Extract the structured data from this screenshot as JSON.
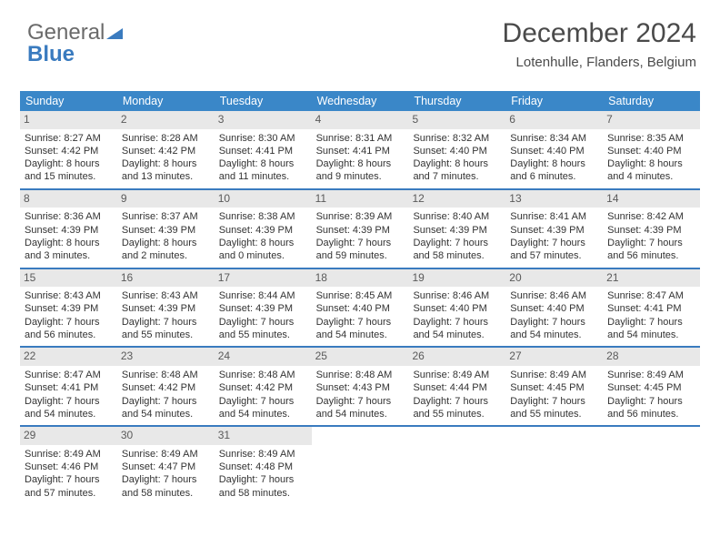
{
  "logo": {
    "text1": "General",
    "text2": "Blue"
  },
  "title": "December 2024",
  "location": "Lotenhulle, Flanders, Belgium",
  "colors": {
    "header_bg": "#3a87c8",
    "header_text": "#ffffff",
    "accent": "#3a7bbf",
    "daynum_bg": "#e8e8e8",
    "text": "#333333",
    "logo_gray": "#6a6a6a"
  },
  "fonts": {
    "title_size": 30,
    "location_size": 15,
    "dow_size": 12.5,
    "cell_size": 11,
    "daynum_size": 12
  },
  "days_of_week": [
    "Sunday",
    "Monday",
    "Tuesday",
    "Wednesday",
    "Thursday",
    "Friday",
    "Saturday"
  ],
  "weeks": [
    [
      {
        "n": "1",
        "sunrise": "8:27 AM",
        "sunset": "4:42 PM",
        "dl": "8 hours and 15 minutes."
      },
      {
        "n": "2",
        "sunrise": "8:28 AM",
        "sunset": "4:42 PM",
        "dl": "8 hours and 13 minutes."
      },
      {
        "n": "3",
        "sunrise": "8:30 AM",
        "sunset": "4:41 PM",
        "dl": "8 hours and 11 minutes."
      },
      {
        "n": "4",
        "sunrise": "8:31 AM",
        "sunset": "4:41 PM",
        "dl": "8 hours and 9 minutes."
      },
      {
        "n": "5",
        "sunrise": "8:32 AM",
        "sunset": "4:40 PM",
        "dl": "8 hours and 7 minutes."
      },
      {
        "n": "6",
        "sunrise": "8:34 AM",
        "sunset": "4:40 PM",
        "dl": "8 hours and 6 minutes."
      },
      {
        "n": "7",
        "sunrise": "8:35 AM",
        "sunset": "4:40 PM",
        "dl": "8 hours and 4 minutes."
      }
    ],
    [
      {
        "n": "8",
        "sunrise": "8:36 AM",
        "sunset": "4:39 PM",
        "dl": "8 hours and 3 minutes."
      },
      {
        "n": "9",
        "sunrise": "8:37 AM",
        "sunset": "4:39 PM",
        "dl": "8 hours and 2 minutes."
      },
      {
        "n": "10",
        "sunrise": "8:38 AM",
        "sunset": "4:39 PM",
        "dl": "8 hours and 0 minutes."
      },
      {
        "n": "11",
        "sunrise": "8:39 AM",
        "sunset": "4:39 PM",
        "dl": "7 hours and 59 minutes."
      },
      {
        "n": "12",
        "sunrise": "8:40 AM",
        "sunset": "4:39 PM",
        "dl": "7 hours and 58 minutes."
      },
      {
        "n": "13",
        "sunrise": "8:41 AM",
        "sunset": "4:39 PM",
        "dl": "7 hours and 57 minutes."
      },
      {
        "n": "14",
        "sunrise": "8:42 AM",
        "sunset": "4:39 PM",
        "dl": "7 hours and 56 minutes."
      }
    ],
    [
      {
        "n": "15",
        "sunrise": "8:43 AM",
        "sunset": "4:39 PM",
        "dl": "7 hours and 56 minutes."
      },
      {
        "n": "16",
        "sunrise": "8:43 AM",
        "sunset": "4:39 PM",
        "dl": "7 hours and 55 minutes."
      },
      {
        "n": "17",
        "sunrise": "8:44 AM",
        "sunset": "4:39 PM",
        "dl": "7 hours and 55 minutes."
      },
      {
        "n": "18",
        "sunrise": "8:45 AM",
        "sunset": "4:40 PM",
        "dl": "7 hours and 54 minutes."
      },
      {
        "n": "19",
        "sunrise": "8:46 AM",
        "sunset": "4:40 PM",
        "dl": "7 hours and 54 minutes."
      },
      {
        "n": "20",
        "sunrise": "8:46 AM",
        "sunset": "4:40 PM",
        "dl": "7 hours and 54 minutes."
      },
      {
        "n": "21",
        "sunrise": "8:47 AM",
        "sunset": "4:41 PM",
        "dl": "7 hours and 54 minutes."
      }
    ],
    [
      {
        "n": "22",
        "sunrise": "8:47 AM",
        "sunset": "4:41 PM",
        "dl": "7 hours and 54 minutes."
      },
      {
        "n": "23",
        "sunrise": "8:48 AM",
        "sunset": "4:42 PM",
        "dl": "7 hours and 54 minutes."
      },
      {
        "n": "24",
        "sunrise": "8:48 AM",
        "sunset": "4:42 PM",
        "dl": "7 hours and 54 minutes."
      },
      {
        "n": "25",
        "sunrise": "8:48 AM",
        "sunset": "4:43 PM",
        "dl": "7 hours and 54 minutes."
      },
      {
        "n": "26",
        "sunrise": "8:49 AM",
        "sunset": "4:44 PM",
        "dl": "7 hours and 55 minutes."
      },
      {
        "n": "27",
        "sunrise": "8:49 AM",
        "sunset": "4:45 PM",
        "dl": "7 hours and 55 minutes."
      },
      {
        "n": "28",
        "sunrise": "8:49 AM",
        "sunset": "4:45 PM",
        "dl": "7 hours and 56 minutes."
      }
    ],
    [
      {
        "n": "29",
        "sunrise": "8:49 AM",
        "sunset": "4:46 PM",
        "dl": "7 hours and 57 minutes."
      },
      {
        "n": "30",
        "sunrise": "8:49 AM",
        "sunset": "4:47 PM",
        "dl": "7 hours and 58 minutes."
      },
      {
        "n": "31",
        "sunrise": "8:49 AM",
        "sunset": "4:48 PM",
        "dl": "7 hours and 58 minutes."
      },
      null,
      null,
      null,
      null
    ]
  ],
  "labels": {
    "sunrise": "Sunrise:",
    "sunset": "Sunset:",
    "daylight": "Daylight:"
  }
}
